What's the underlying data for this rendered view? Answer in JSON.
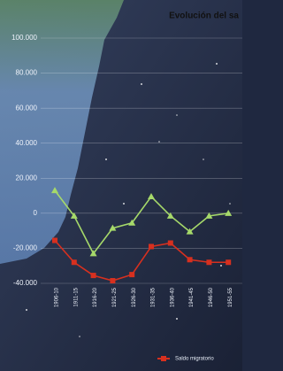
{
  "chart_data": {
    "type": "line",
    "title": "Evolución del sa",
    "categories": [
      "1906-10",
      "1911-15",
      "1916-20",
      "1921-25",
      "1926-30",
      "1931-35",
      "1936-40",
      "1941-45",
      "1946-50",
      "1951-55"
    ],
    "series": [
      {
        "color": "#a6d96a",
        "marker": "triangle",
        "values": [
          13000,
          -1500,
          -23000,
          -8500,
          -5500,
          9500,
          -1500,
          -10500,
          -1500,
          0
        ]
      },
      {
        "name": "Saldo migratorio",
        "color": "#d7301f",
        "marker": "square",
        "values": [
          -15500,
          -28000,
          -35500,
          -38500,
          -35000,
          -19000,
          -17000,
          -26500,
          -28000,
          -28000
        ]
      }
    ],
    "ylim": [
      -40000,
      100000
    ],
    "yticks": [
      {
        "value": -40000,
        "label": "-40.000"
      },
      {
        "value": -20000,
        "label": "-20.000"
      },
      0,
      {
        "value": 20000,
        "label": "20.000"
      },
      {
        "value": 40000,
        "label": "40.000"
      },
      {
        "value": 60000,
        "label": "60.000"
      },
      {
        "value": 80000,
        "label": "80.000"
      },
      {
        "value": 100000,
        "label": "100.000"
      }
    ],
    "grid": true
  }
}
